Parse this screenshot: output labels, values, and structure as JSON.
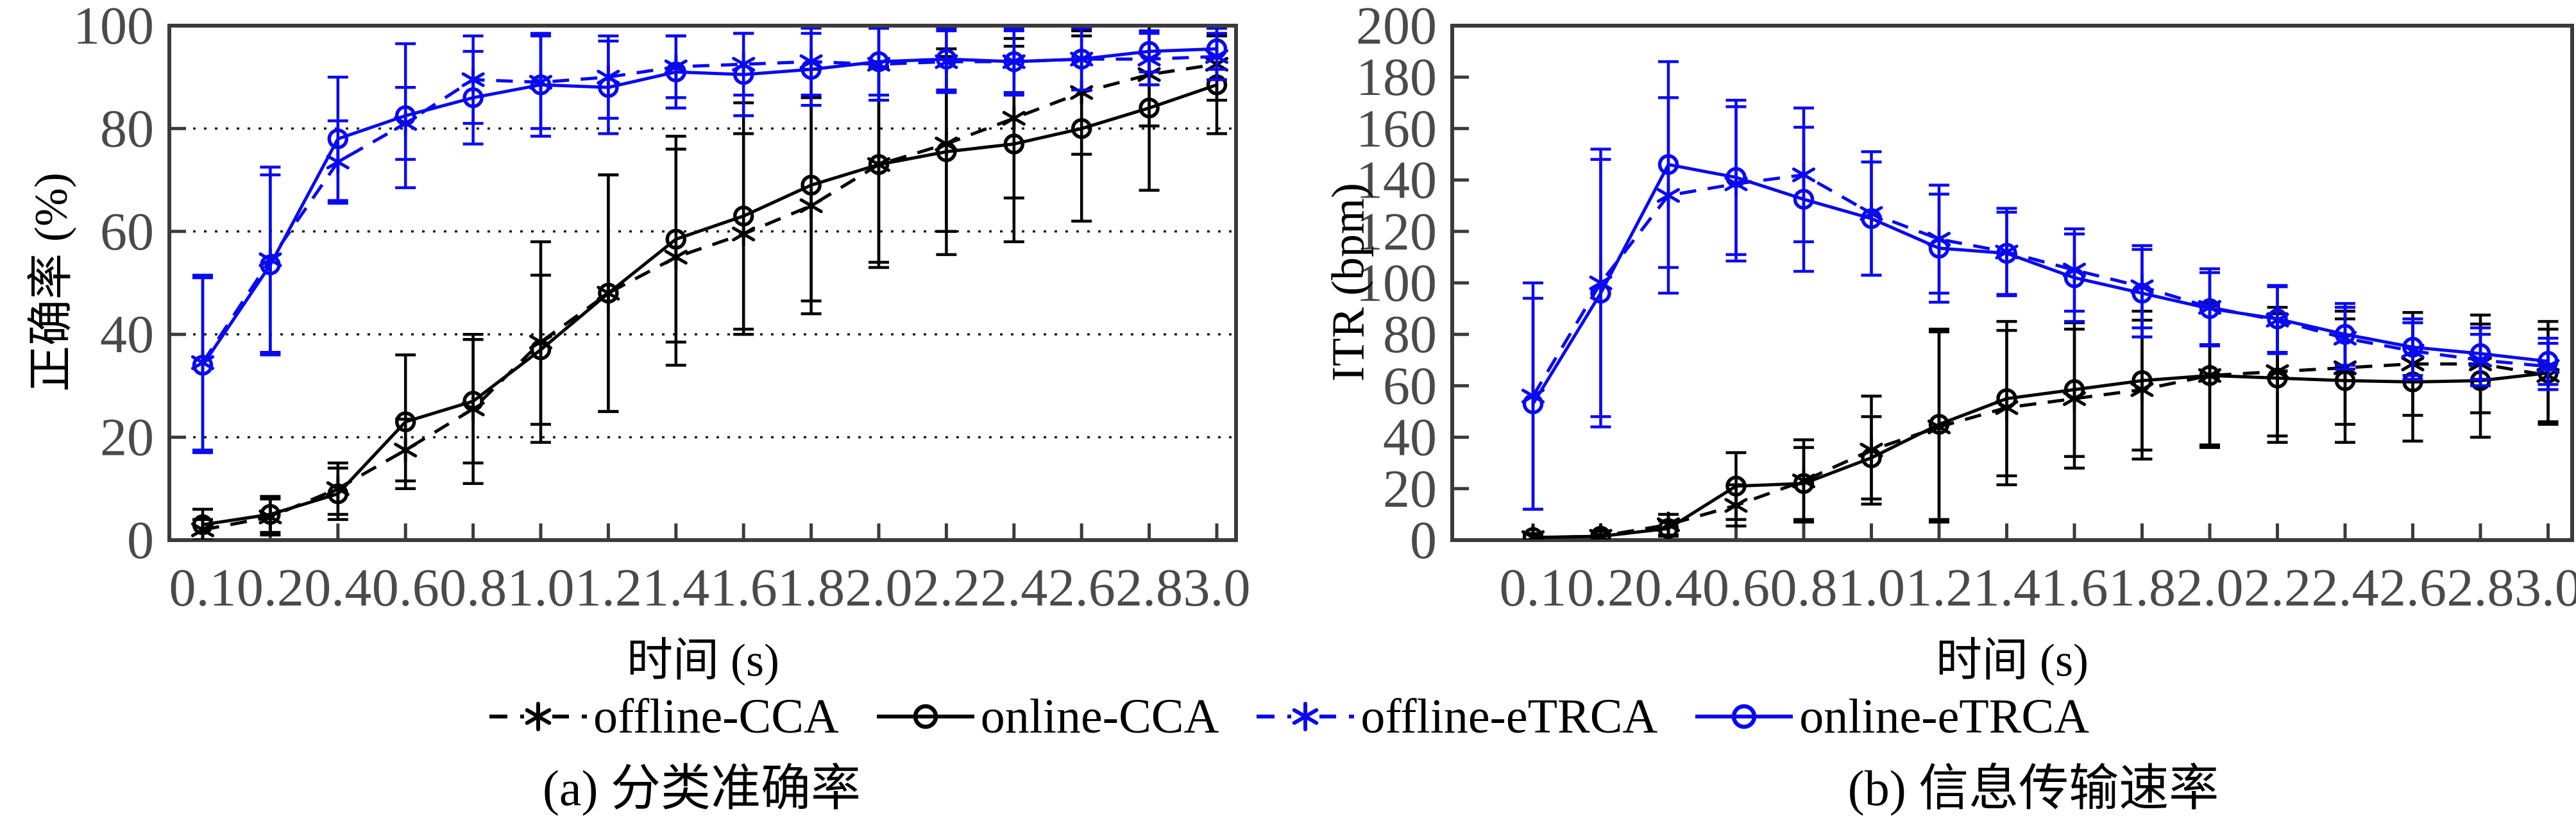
{
  "colors": {
    "black": "#000000",
    "blue": "#0a0af0",
    "frame": "#3b3b3b",
    "tick_label": "#4a4a4a",
    "grid": "#1a1a1a"
  },
  "legend": {
    "items": [
      {
        "label": "offline-CCA",
        "series": "offline-CCA"
      },
      {
        "label": "online-CCA",
        "series": "online-CCA"
      },
      {
        "label": "offline-eTRCA",
        "series": "offline-eTRCA"
      },
      {
        "label": "online-eTRCA",
        "series": "online-eTRCA"
      }
    ]
  },
  "chart_data": [
    {
      "id": "accuracy",
      "type": "line",
      "caption": "(a) 分类准确率",
      "xlabel": "时间 (s)",
      "ylabel": "正确率 (%)",
      "categories": [
        "0.1",
        "0.2",
        "0.4",
        "0.6",
        "0.8",
        "1.0",
        "1.2",
        "1.4",
        "1.6",
        "1.8",
        "2.0",
        "2.2",
        "2.4",
        "2.6",
        "2.8",
        "3.0"
      ],
      "ylim": [
        0,
        100
      ],
      "y_ticks": [
        0,
        20,
        40,
        60,
        80,
        100
      ],
      "gridline_values": [
        20,
        40,
        60,
        80
      ],
      "legend_position": "below-figure",
      "series": [
        {
          "name": "offline-CCA",
          "color": "black",
          "line": "dashed",
          "marker": "asterisk",
          "values": [
            2,
            4.5,
            10,
            17.5,
            25.5,
            38.5,
            48,
            55,
            59.5,
            65,
            73,
            77,
            82,
            87,
            90.5,
            92.5
          ],
          "errors": [
            2,
            3.5,
            5,
            6,
            14.5,
            19.5,
            23,
            21,
            19.5,
            21,
            19,
            17,
            15.5,
            12,
            10,
            7
          ]
        },
        {
          "name": "online-CCA",
          "color": "black",
          "line": "solid",
          "marker": "circle",
          "values": [
            3,
            5,
            9,
            23,
            27,
            37,
            48,
            58.5,
            63,
            69,
            73,
            75.5,
            77,
            80,
            84,
            88.5
          ],
          "errors": [
            3,
            3.5,
            5,
            13,
            12,
            14.5,
            23,
            20,
            22,
            22.5,
            20,
            20,
            19,
            18,
            16,
            9.5
          ]
        },
        {
          "name": "offline-eTRCA",
          "color": "blue",
          "line": "dashed",
          "marker": "asterisk",
          "values": [
            34.5,
            54.5,
            73.5,
            81,
            89.5,
            89,
            90,
            92,
            92.5,
            93,
            92.5,
            93,
            93,
            93.5,
            93.5,
            94
          ],
          "errors": [
            17,
            18,
            8,
            7,
            8.5,
            9,
            8,
            6,
            6,
            6.5,
            7,
            6,
            6,
            6,
            5,
            4.5
          ]
        },
        {
          "name": "online-eTRCA",
          "color": "blue",
          "line": "solid",
          "marker": "circle",
          "values": [
            34,
            53.5,
            78,
            82.5,
            86,
            88.5,
            88,
            91,
            90.5,
            91.5,
            93,
            93.5,
            93,
            93.5,
            95,
            95.5
          ],
          "errors": [
            17,
            17.5,
            12,
            14,
            9,
            10,
            9,
            7,
            8,
            7,
            6.5,
            6,
            6.5,
            6,
            4,
            4
          ]
        }
      ]
    },
    {
      "id": "itr",
      "type": "line",
      "caption": "(b) 信息传输速率",
      "xlabel": "时间 (s)",
      "ylabel": "ITR (bpm)",
      "categories": [
        "0.1",
        "0.2",
        "0.4",
        "0.6",
        "0.8",
        "1.0",
        "1.2",
        "1.4",
        "1.6",
        "1.8",
        "2.0",
        "2.2",
        "2.4",
        "2.6",
        "2.8",
        "3.0"
      ],
      "ylim": [
        0,
        200
      ],
      "y_ticks": [
        0,
        20,
        40,
        60,
        80,
        100,
        120,
        140,
        160,
        180,
        200
      ],
      "gridline_values": [],
      "legend_position": "below-figure",
      "series": [
        {
          "name": "offline-CCA",
          "color": "black",
          "line": "dashed",
          "marker": "asterisk",
          "values": [
            1,
            1.5,
            6,
            13.5,
            23,
            35,
            44,
            51.5,
            55,
            58.5,
            64,
            65.5,
            67,
            68.5,
            68.5,
            64
          ],
          "errors": [
            1.5,
            2,
            4,
            8,
            16,
            21,
            37,
            30,
            27,
            27,
            28,
            25,
            22,
            20,
            19,
            18
          ]
        },
        {
          "name": "online-CCA",
          "color": "black",
          "line": "solid",
          "marker": "circle",
          "values": [
            1,
            1.5,
            4.5,
            21,
            22,
            32,
            45,
            55,
            58.5,
            62,
            64,
            63,
            62,
            61.5,
            62,
            65
          ],
          "errors": [
            1.5,
            2,
            3,
            13,
            14,
            16,
            37,
            30,
            26,
            27,
            27,
            25,
            24,
            23,
            22,
            20
          ]
        },
        {
          "name": "offline-eTRCA",
          "color": "blue",
          "line": "dashed",
          "marker": "asterisk",
          "values": [
            56,
            100,
            134,
            138.5,
            142,
            127,
            117,
            112,
            105,
            98.5,
            90.5,
            85.5,
            78.5,
            73.5,
            70,
            67.5
          ],
          "errors": [
            44,
            52,
            38,
            30,
            26,
            24,
            21,
            17,
            16,
            16,
            15,
            13,
            12,
            11,
            10,
            9
          ]
        },
        {
          "name": "online-eTRCA",
          "color": "blue",
          "line": "solid",
          "marker": "circle",
          "values": [
            53,
            96,
            146,
            141,
            132.5,
            125,
            113.5,
            111.5,
            102,
            96,
            90,
            86,
            80,
            75,
            72.5,
            69.5
          ],
          "errors": [
            41,
            52,
            40,
            30,
            28,
            22,
            21,
            16,
            17,
            17,
            14,
            13,
            12,
            11,
            10,
            9
          ]
        }
      ]
    }
  ]
}
